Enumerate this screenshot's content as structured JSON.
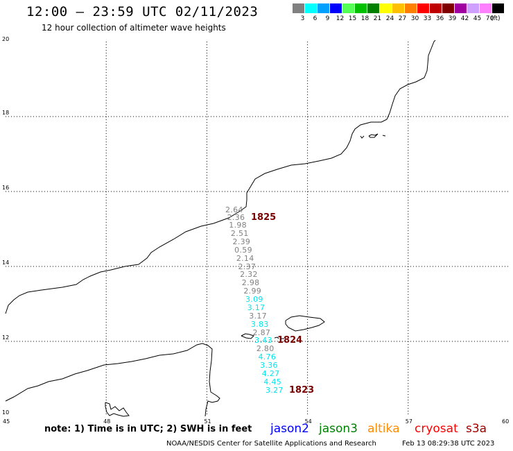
{
  "header": {
    "title": "12:00 – 23:59 UTC 02/11/2023",
    "subtitle": "12 hour collection of altimeter wave heights"
  },
  "legend": {
    "unit": "(ft)",
    "bins": [
      {
        "label": "3",
        "color": "#808080"
      },
      {
        "label": "6",
        "color": "#00ffff"
      },
      {
        "label": "9",
        "color": "#00a0ff"
      },
      {
        "label": "12",
        "color": "#0000ff"
      },
      {
        "label": "15",
        "color": "#55ff55"
      },
      {
        "label": "18",
        "color": "#00c000"
      },
      {
        "label": "21",
        "color": "#008000"
      },
      {
        "label": "24",
        "color": "#ffff00"
      },
      {
        "label": "27",
        "color": "#ffc000"
      },
      {
        "label": "30",
        "color": "#ff8000"
      },
      {
        "label": "33",
        "color": "#ff0000"
      },
      {
        "label": "36",
        "color": "#c00000"
      },
      {
        "label": "39",
        "color": "#800000"
      },
      {
        "label": "42",
        "color": "#a000a0"
      },
      {
        "label": "45",
        "color": "#d0a0ff"
      },
      {
        "label": "70",
        "color": "#ff80ff"
      },
      {
        "label": "",
        "color": "#000000"
      }
    ]
  },
  "map": {
    "lat_range": [
      10,
      20
    ],
    "lon_range": [
      45,
      60
    ],
    "lat_ticks": [
      "20",
      "18",
      "16",
      "14",
      "12",
      "10"
    ],
    "lon_ticks": [
      "45",
      "48",
      "51",
      "54",
      "57",
      "60"
    ],
    "grid": "dotted"
  },
  "track": {
    "observations": [
      {
        "text": "2.64",
        "lat": 15.5,
        "color": "#808080"
      },
      {
        "text": "2.36",
        "lat": 15.3,
        "color": "#808080"
      },
      {
        "text": "1.98",
        "lat": 15.09,
        "color": "#808080"
      },
      {
        "text": "2.51",
        "lat": 14.87,
        "color": "#808080"
      },
      {
        "text": "2.39",
        "lat": 14.65,
        "color": "#808080"
      },
      {
        "text": "0.59",
        "lat": 14.43,
        "color": "#808080"
      },
      {
        "text": "2.14",
        "lat": 14.21,
        "color": "#808080"
      },
      {
        "text": "2.37",
        "lat": 13.99,
        "color": "#808080"
      },
      {
        "text": "2.32",
        "lat": 13.77,
        "color": "#808080"
      },
      {
        "text": "2.98",
        "lat": 13.55,
        "color": "#808080"
      },
      {
        "text": "2.99",
        "lat": 13.33,
        "color": "#808080"
      },
      {
        "text": "3.09",
        "lat": 13.11,
        "color": "#00e5ee"
      },
      {
        "text": "3.17",
        "lat": 12.89,
        "color": "#00e5ee"
      },
      {
        "text": "3.17",
        "lat": 12.67,
        "color": "#808080"
      },
      {
        "text": "3.83",
        "lat": 12.45,
        "color": "#00e5ee"
      },
      {
        "text": "2.87",
        "lat": 12.23,
        "color": "#808080"
      },
      {
        "text": "3.43",
        "lat": 12.01,
        "color": "#00e5ee"
      },
      {
        "text": "2.80",
        "lat": 11.79,
        "color": "#808080"
      },
      {
        "text": "4.76",
        "lat": 11.57,
        "color": "#00e5ee"
      },
      {
        "text": "3.36",
        "lat": 11.35,
        "color": "#00e5ee"
      },
      {
        "text": "4.27",
        "lat": 11.13,
        "color": "#00e5ee"
      },
      {
        "text": "4.45",
        "lat": 10.91,
        "color": "#00e5ee"
      },
      {
        "text": "3.27",
        "lat": 10.69,
        "color": "#00e5ee"
      }
    ],
    "pass_times": [
      {
        "text": "1825",
        "lat": 15.3
      },
      {
        "text": "1824",
        "lat": 12.01
      },
      {
        "text": "1823",
        "lat": 10.69
      }
    ]
  },
  "footer": {
    "note": "note: 1) Time is in UTC; 2) SWH is in feet",
    "satellites": [
      {
        "name": "jason2",
        "color": "#0000ff"
      },
      {
        "name": "jason3",
        "color": "#008000"
      },
      {
        "name": "altika",
        "color": "#ff8c00"
      },
      {
        "name": "cryosat",
        "color": "#ff0000"
      },
      {
        "name": "s3a",
        "color": "#a00000"
      }
    ],
    "credit": "NOAA/NESDIS Center for Satellite Applications and Research",
    "timestamp": "Feb 13 08:29:38 UTC 2023"
  }
}
